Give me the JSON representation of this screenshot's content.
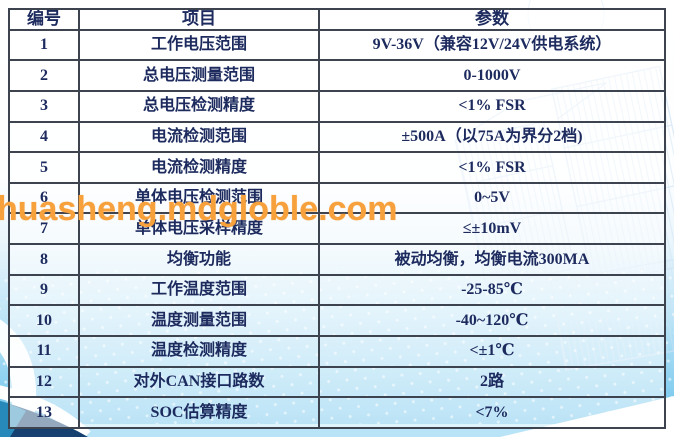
{
  "watermark_text": "huasheng.mdgloble.com",
  "table": {
    "headers": [
      "编号",
      "项目",
      "参数"
    ],
    "rows": [
      [
        "1",
        "工作电压范围",
        "9V-36V（兼容12V/24V供电系统）"
      ],
      [
        "2",
        "总电压测量范围",
        "0-1000V"
      ],
      [
        "3",
        "总电压检测精度",
        "<1% FSR"
      ],
      [
        "4",
        "电流检测范围",
        "±500A（以75A为界分2档)"
      ],
      [
        "5",
        "电流检测精度",
        "<1% FSR"
      ],
      [
        "6",
        "单体电压检测范围",
        "0~5V"
      ],
      [
        "7",
        "单体电压采样精度",
        "≤±10mV"
      ],
      [
        "8",
        "均衡功能",
        "被动均衡，均衡电流300MA"
      ],
      [
        "9",
        "工作温度范围",
        "-25-85℃"
      ],
      [
        "10",
        "温度测量范围",
        "-40~120℃"
      ],
      [
        "11",
        "温度检测精度",
        "<±1℃"
      ],
      [
        "12",
        "对外CAN接口路数",
        "2路"
      ],
      [
        "13",
        "SOC估算精度",
        "<7%"
      ]
    ]
  },
  "colors": {
    "text_navy": "#1c2a5e",
    "table_border": "#3d4450",
    "watermark_orange": "#f7a13d",
    "bg_blue_deep": "#5dbdea",
    "bg_blue_mid": "#9bd6f2",
    "corner_navy": "#16406f",
    "bottom_strip_blue": "#b9e4f7",
    "building_line_blue": "#cfe3f4"
  }
}
